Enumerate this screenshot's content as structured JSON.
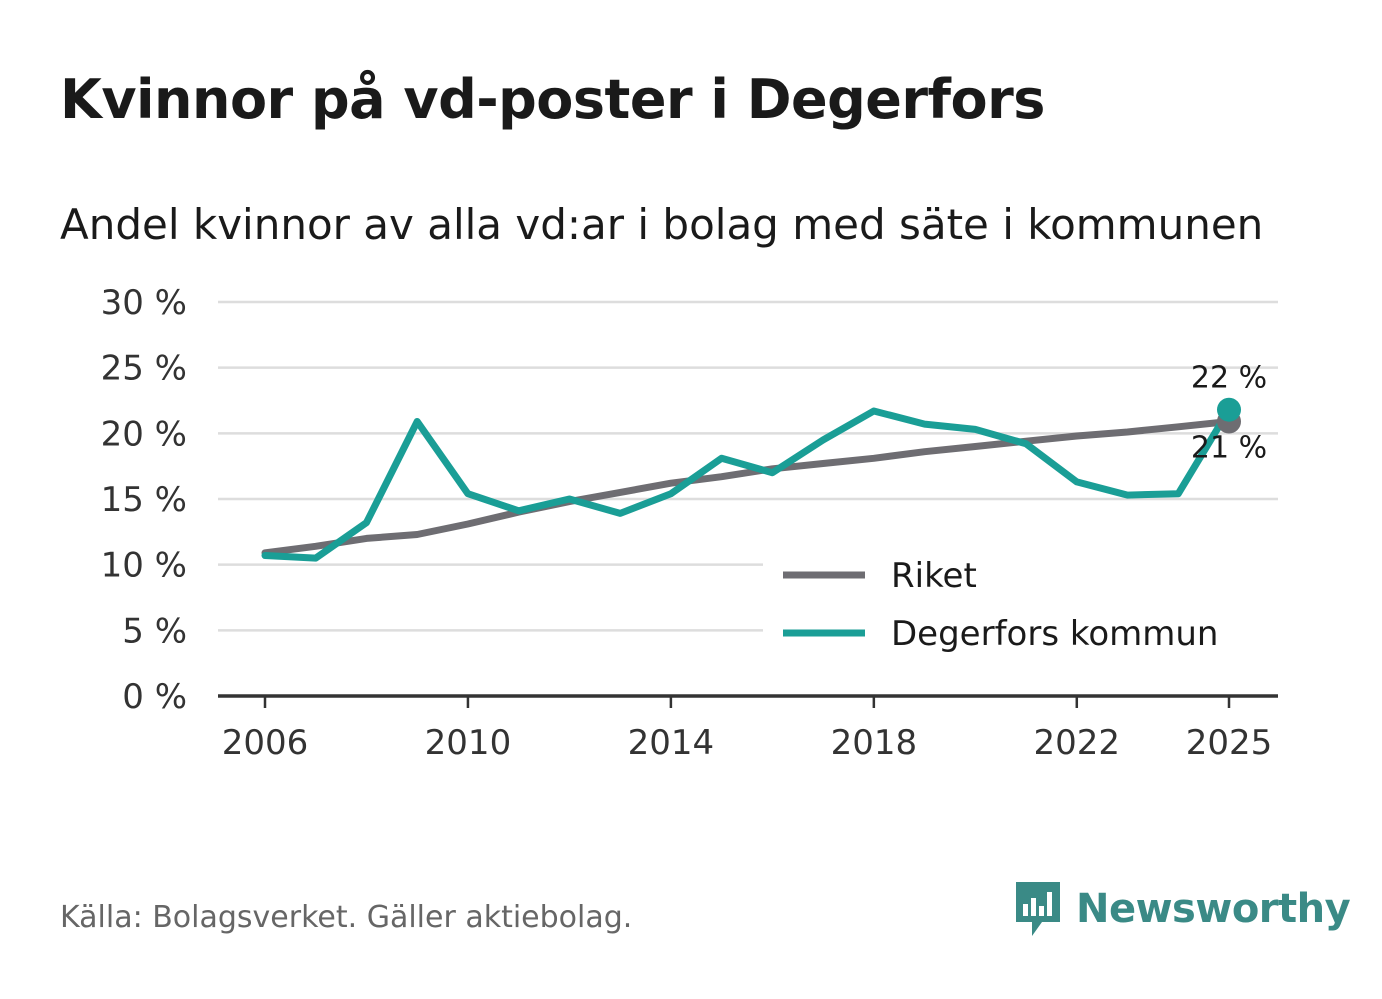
{
  "title": "Kvinnor på vd-poster i Degerfors",
  "subtitle": "Andel kvinnor av alla vd:ar i bolag med säte i kommunen",
  "source": "Källa: Bolagsverket. Gäller aktiebolag.",
  "brand": {
    "name": "Newsworthy",
    "icon": "newsworthy-logo-icon",
    "color": "#3a8a86"
  },
  "chart_data": {
    "type": "line",
    "title": "Kvinnor på vd-poster i Degerfors",
    "subtitle": "Andel kvinnor av alla vd:ar i bolag med säte i kommunen",
    "xlabel": "",
    "ylabel": "",
    "ylim": [
      0,
      30
    ],
    "y_ticks": [
      0,
      5,
      10,
      15,
      20,
      25,
      30
    ],
    "y_tick_labels": [
      "0 %",
      "5 %",
      "10 %",
      "15 %",
      "20 %",
      "25 %",
      "30 %"
    ],
    "x_ticks": [
      2006,
      2010,
      2014,
      2018,
      2022,
      2025
    ],
    "x_tick_labels": [
      "2006",
      "2010",
      "2014",
      "2018",
      "2022",
      "2025"
    ],
    "x": [
      2006,
      2007,
      2008,
      2009,
      2010,
      2011,
      2012,
      2013,
      2014,
      2015,
      2016,
      2017,
      2018,
      2019,
      2020,
      2021,
      2022,
      2023,
      2024,
      2025
    ],
    "grid": true,
    "legend_position": "bottom-right",
    "series": [
      {
        "name": "Riket",
        "color": "#6e6d72",
        "values": [
          10.9,
          11.4,
          12.0,
          12.3,
          13.1,
          14.0,
          14.8,
          15.5,
          16.2,
          16.7,
          17.3,
          17.7,
          18.1,
          18.6,
          19.0,
          19.4,
          19.8,
          20.1,
          20.5,
          20.9
        ],
        "end_label": "21 %"
      },
      {
        "name": "Degerfors kommun",
        "color": "#1a9e96",
        "values": [
          10.7,
          10.5,
          13.2,
          20.9,
          15.4,
          14.1,
          15.0,
          13.9,
          15.4,
          18.1,
          17.0,
          19.5,
          21.7,
          20.7,
          20.3,
          19.2,
          16.3,
          15.3,
          15.4,
          21.8
        ],
        "end_label": "22 %"
      }
    ]
  }
}
